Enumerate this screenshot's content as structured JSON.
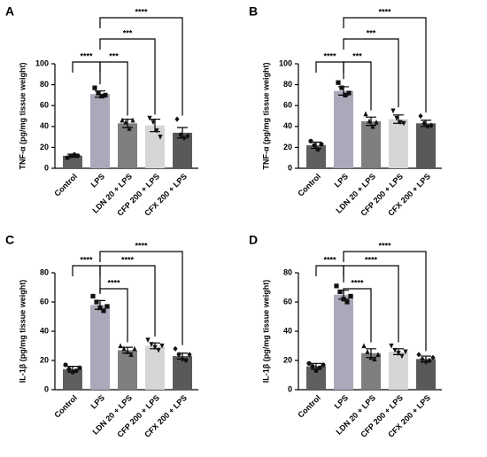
{
  "chart_data": [
    {
      "type": "bar",
      "panel": "A",
      "y_label": "TNF-α (pg/mg tissue weight)",
      "categories": [
        "Control",
        "LPS",
        "LDN 20 + LPS",
        "CFP 200 + LPS",
        "CFX 200 + LPS"
      ],
      "values": [
        12,
        71,
        43,
        41,
        34
      ],
      "errors": [
        1.5,
        3,
        4,
        6,
        5
      ],
      "points": [
        [
          10,
          12,
          13,
          12
        ],
        [
          77,
          72,
          69,
          70
        ],
        [
          46,
          44,
          38,
          46
        ],
        [
          48,
          44,
          36,
          30
        ],
        [
          47,
          32,
          29,
          31
        ]
      ],
      "colors": [
        "#5f5f5f",
        "#a9a9b9",
        "#7f7f7f",
        "#d6d6d6",
        "#595959"
      ],
      "ylim": [
        0,
        100
      ],
      "yticks": [
        0,
        20,
        40,
        60,
        80,
        100
      ],
      "brackets": [
        {
          "pair": [
            0,
            1
          ],
          "label": "****"
        },
        {
          "pair": [
            1,
            2
          ],
          "label": "***"
        },
        {
          "pair": [
            1,
            3
          ],
          "label": "***"
        },
        {
          "pair": [
            1,
            4
          ],
          "label": "****"
        }
      ]
    },
    {
      "type": "bar",
      "panel": "B",
      "y_label": "TNF-α (pg/mg tissue weight)",
      "categories": [
        "Control",
        "LPS",
        "LDN 20 + LPS",
        "CFP 200 + LPS",
        "CFX 200 + LPS"
      ],
      "values": [
        22,
        74,
        45,
        47,
        43
      ],
      "errors": [
        3,
        4,
        4,
        4,
        3
      ],
      "points": [
        [
          26,
          22,
          18,
          23
        ],
        [
          82,
          77,
          70,
          72
        ],
        [
          52,
          45,
          40,
          44
        ],
        [
          55,
          48,
          44,
          43
        ],
        [
          50,
          43,
          40,
          41
        ]
      ],
      "colors": [
        "#5f5f5f",
        "#a9a9b9",
        "#7f7f7f",
        "#d6d6d6",
        "#595959"
      ],
      "ylim": [
        0,
        100
      ],
      "yticks": [
        0,
        20,
        40,
        60,
        80,
        100
      ],
      "brackets": [
        {
          "pair": [
            0,
            1
          ],
          "label": "****"
        },
        {
          "pair": [
            1,
            2
          ],
          "label": "***"
        },
        {
          "pair": [
            1,
            3
          ],
          "label": "***"
        },
        {
          "pair": [
            1,
            4
          ],
          "label": "****"
        }
      ]
    },
    {
      "type": "bar",
      "panel": "C",
      "y_label": "IL-1β (pg/mg tissue weight)",
      "categories": [
        "Control",
        "LPS",
        "LDN 20 + LPS",
        "CFP 200 + LPS",
        "CFX 200 + LPS"
      ],
      "values": [
        14,
        58,
        27,
        30,
        23
      ],
      "errors": [
        2,
        3,
        2,
        2,
        2
      ],
      "points": [
        [
          17,
          14,
          12,
          13,
          15
        ],
        [
          64,
          60,
          56,
          54,
          57
        ],
        [
          30,
          28,
          26,
          24,
          28
        ],
        [
          34,
          31,
          29,
          27,
          30
        ],
        [
          28,
          24,
          21,
          20,
          24
        ]
      ],
      "colors": [
        "#5f5f5f",
        "#a9a9b9",
        "#7f7f7f",
        "#d6d6d6",
        "#595959"
      ],
      "ylim": [
        0,
        80
      ],
      "yticks": [
        0,
        20,
        40,
        60,
        80
      ],
      "brackets": [
        {
          "pair": [
            0,
            1
          ],
          "label": "****"
        },
        {
          "pair": [
            1,
            2
          ],
          "label": "****"
        },
        {
          "pair": [
            1,
            3
          ],
          "label": "****"
        },
        {
          "pair": [
            1,
            4
          ],
          "label": "****"
        }
      ]
    },
    {
      "type": "bar",
      "panel": "D",
      "y_label": "IL-1β (pg/mg tissue weight)",
      "categories": [
        "Control",
        "LPS",
        "LDN 20 + LPS",
        "CFP 200 + LPS",
        "CFX 200 + LPS"
      ],
      "values": [
        16,
        65,
        25,
        26,
        21
      ],
      "errors": [
        2,
        3,
        3,
        2,
        2
      ],
      "points": [
        [
          18,
          16,
          13,
          15,
          17
        ],
        [
          71,
          67,
          62,
          60,
          64
        ],
        [
          30,
          26,
          22,
          21,
          24
        ],
        [
          30,
          27,
          25,
          23,
          26
        ],
        [
          24,
          21,
          19,
          20,
          22
        ]
      ],
      "colors": [
        "#5f5f5f",
        "#a9a9b9",
        "#7f7f7f",
        "#d6d6d6",
        "#595959"
      ],
      "ylim": [
        0,
        80
      ],
      "yticks": [
        0,
        20,
        40,
        60,
        80
      ],
      "brackets": [
        {
          "pair": [
            0,
            1
          ],
          "label": "****"
        },
        {
          "pair": [
            1,
            2
          ],
          "label": "****"
        },
        {
          "pair": [
            1,
            3
          ],
          "label": "****"
        },
        {
          "pair": [
            1,
            4
          ],
          "label": "****"
        }
      ]
    }
  ]
}
